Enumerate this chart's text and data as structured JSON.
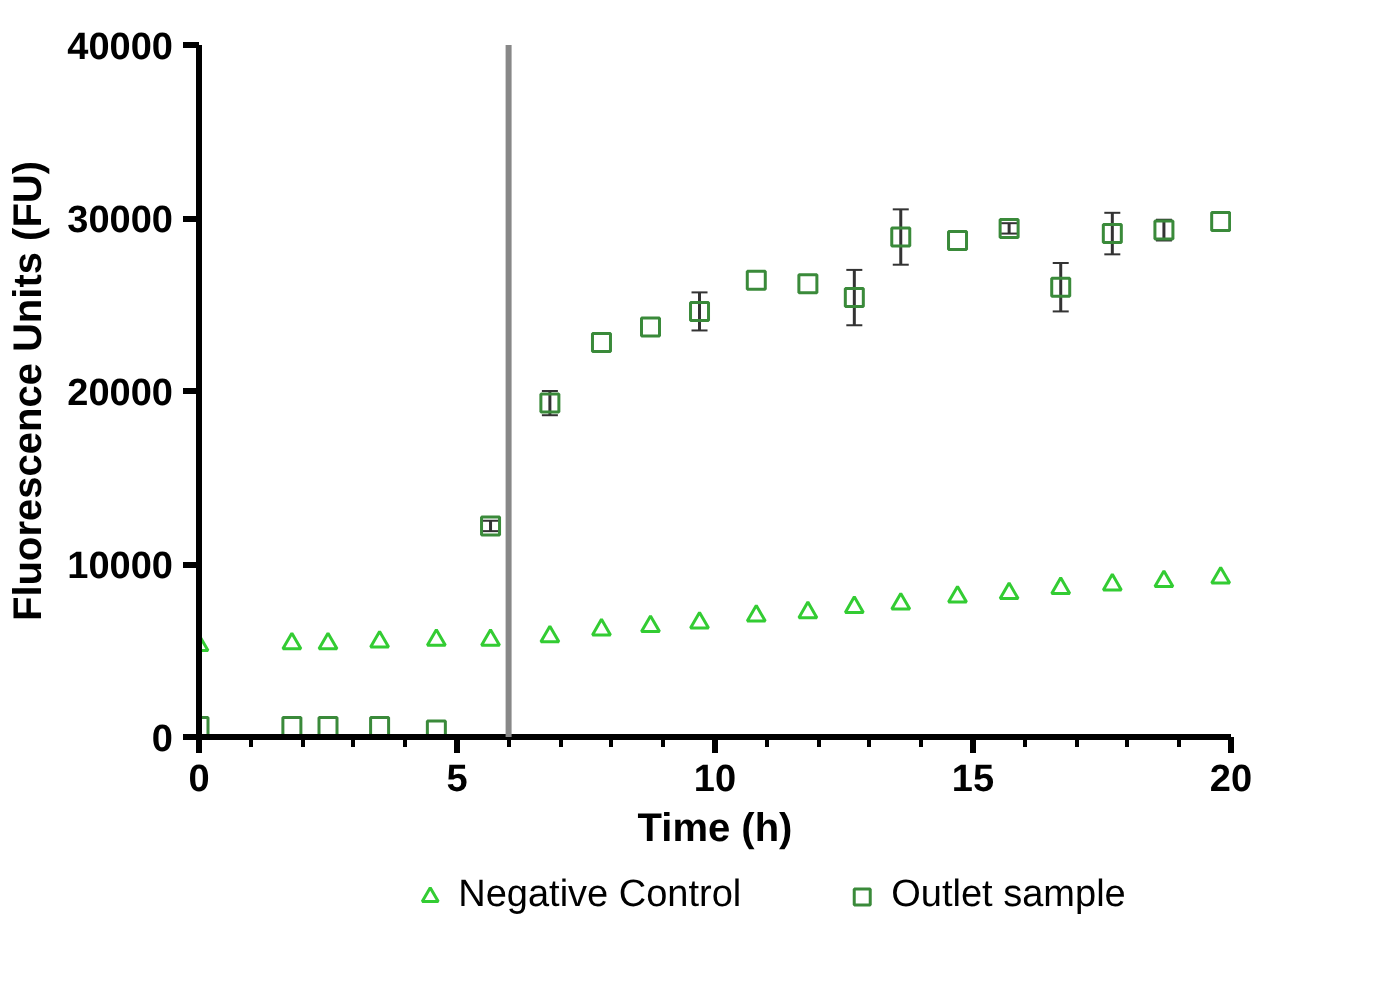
{
  "chart_data": {
    "type": "scatter",
    "xlabel": "Time (h)",
    "ylabel": "Fluorescence Units (FU)",
    "xlim": [
      0,
      20
    ],
    "ylim": [
      0,
      40000
    ],
    "xticks": [
      0,
      5,
      10,
      15,
      20
    ],
    "yticks": [
      0,
      10000,
      20000,
      30000,
      40000
    ],
    "grid": false,
    "legend": "bottom",
    "ref_lines": [
      {
        "axis": "x",
        "value": 6,
        "color": "#888888"
      }
    ],
    "series": [
      {
        "name": "Negative Control",
        "color": "#33cc33",
        "marker": "triangle",
        "x": [
          0,
          1.8,
          2.5,
          3.5,
          4.6,
          5.65,
          6.8,
          7.8,
          8.75,
          9.7,
          10.8,
          11.8,
          12.7,
          13.6,
          14.7,
          15.7,
          16.7,
          17.7,
          18.7,
          19.8
        ],
        "values": [
          5300,
          5400,
          5400,
          5500,
          5600,
          5600,
          5800,
          6200,
          6400,
          6600,
          7000,
          7200,
          7500,
          7700,
          8100,
          8300,
          8600,
          8800,
          9000,
          9200
        ]
      },
      {
        "name": "Outlet sample",
        "color": "#3a8a3a",
        "marker": "square",
        "x": [
          0,
          1.8,
          2.5,
          3.5,
          4.6,
          5.65,
          6.8,
          7.8,
          8.75,
          9.7,
          10.8,
          11.8,
          12.7,
          13.6,
          14.7,
          15.7,
          16.7,
          17.7,
          18.7,
          19.8
        ],
        "values": [
          600,
          600,
          600,
          600,
          400,
          12200,
          19300,
          22800,
          23700,
          24600,
          26400,
          26200,
          25400,
          28900,
          28700,
          29400,
          26000,
          29100,
          29300,
          29800
        ],
        "errors": [
          null,
          null,
          null,
          null,
          null,
          300,
          700,
          null,
          null,
          1100,
          null,
          null,
          1600,
          1600,
          null,
          300,
          1400,
          1200,
          600,
          null
        ]
      }
    ]
  }
}
